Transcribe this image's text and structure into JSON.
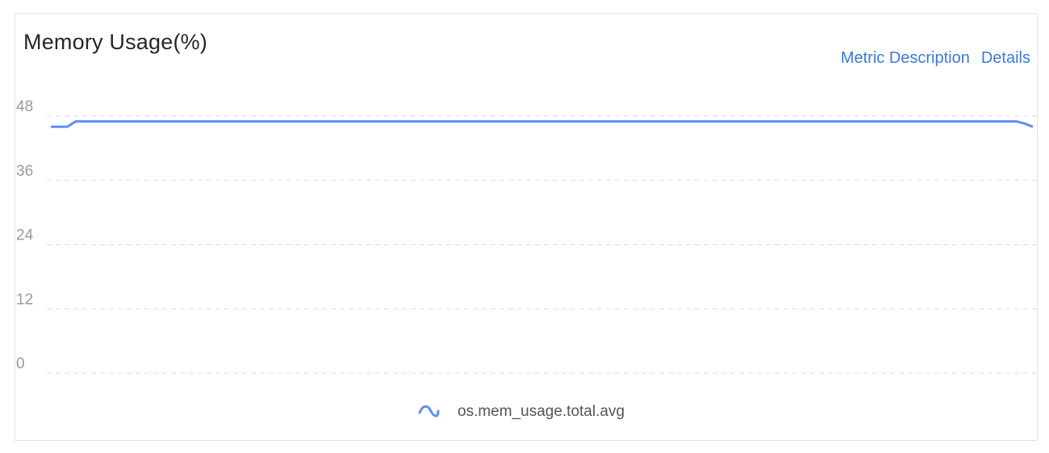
{
  "panel": {
    "title": "Memory Usage(%)",
    "links": {
      "metric_description": "Metric Description",
      "details": "Details"
    }
  },
  "chart_data": {
    "type": "line",
    "title": "Memory Usage(%)",
    "xlabel": "",
    "ylabel": "",
    "ylim": [
      0,
      48
    ],
    "yticks": [
      "0",
      "12",
      "24",
      "36",
      "48"
    ],
    "grid": true,
    "legend_placement": "bottom-center",
    "series": [
      {
        "name": "os.mem_usage.total.avg",
        "color": "#5b8ff9",
        "values": [
          46,
          46,
          46,
          47,
          47,
          47,
          47,
          47,
          47,
          47,
          47,
          47,
          47,
          47,
          47,
          47,
          47,
          47,
          47,
          47,
          47,
          47,
          47,
          47,
          47,
          47,
          47,
          47,
          47,
          47,
          47,
          47,
          47,
          47,
          47,
          47,
          47,
          47,
          47,
          47,
          47,
          47,
          47,
          47,
          47,
          47,
          47,
          47,
          47,
          47,
          47,
          47,
          47,
          47,
          47,
          47,
          47,
          47,
          47,
          47,
          47,
          47,
          47,
          47,
          47,
          47,
          47,
          47,
          47,
          47,
          47,
          47,
          47,
          47,
          47,
          47,
          47,
          47,
          47,
          47,
          47,
          47,
          47,
          47,
          47,
          47,
          47,
          47,
          47,
          47,
          47,
          47,
          47,
          47,
          47,
          47,
          47,
          47,
          47,
          47,
          47,
          47,
          47,
          47,
          47,
          47,
          47,
          47,
          47,
          47,
          47,
          47,
          47,
          47,
          47,
          47,
          47,
          47,
          46.6,
          46
        ]
      }
    ]
  }
}
